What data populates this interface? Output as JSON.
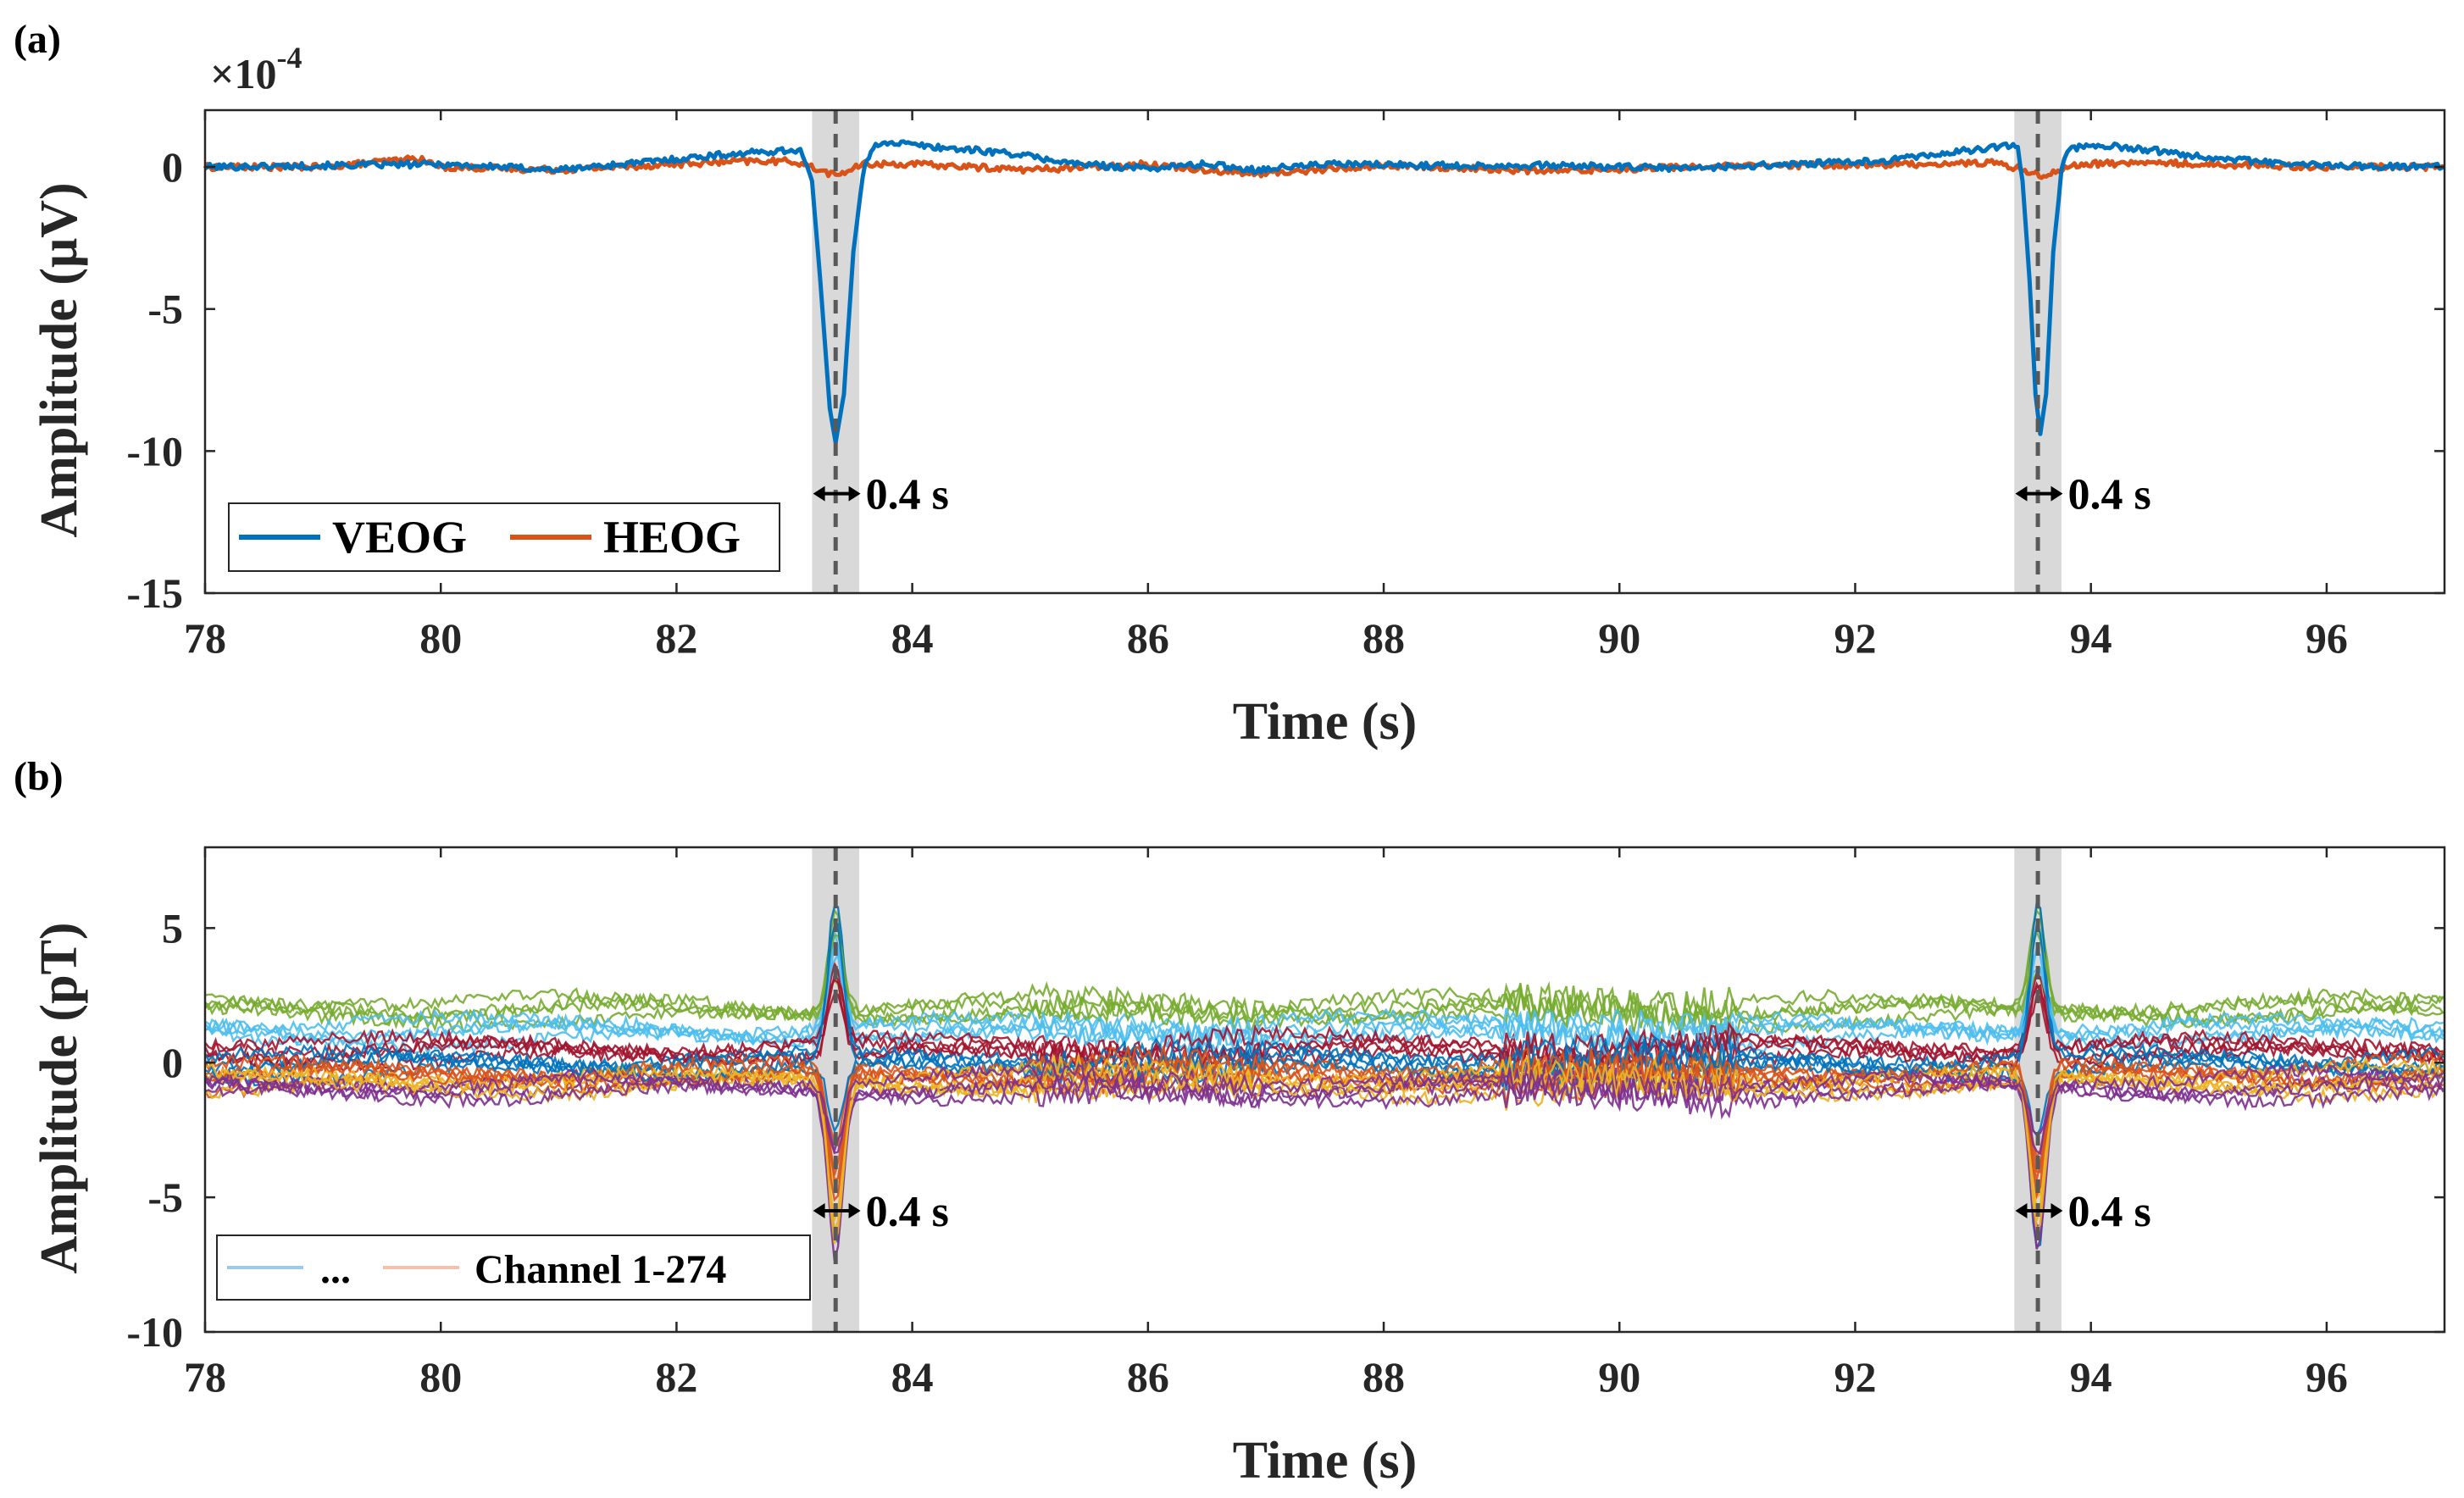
{
  "chart_data": [
    {
      "panel": "(a)",
      "type": "line",
      "title": "",
      "xlabel": "Time (s)",
      "ylabel": "Amplitude (μV)",
      "y_multiplier": "×10",
      "y_multiplier_exp": "-4",
      "xlim": [
        78,
        97
      ],
      "ylim": [
        -15,
        2
      ],
      "xticks": [
        78,
        80,
        82,
        84,
        86,
        88,
        90,
        92,
        94,
        96
      ],
      "yticks": [
        0,
        -5,
        -10,
        -15
      ],
      "ytick_labels": [
        "0",
        "-5",
        "-10",
        "-15"
      ],
      "legend": [
        "VEOG",
        "HEOG"
      ],
      "legend_position": "bottom-left",
      "series": [
        {
          "name": "VEOG",
          "color": "#0072BD",
          "points": [
            [
              78,
              0
            ],
            [
              79,
              0.05
            ],
            [
              80,
              0.1
            ],
            [
              81,
              -0.1
            ],
            [
              81.8,
              0.2
            ],
            [
              82.3,
              0.4
            ],
            [
              82.8,
              0.55
            ],
            [
              83.05,
              0.6
            ],
            [
              83.15,
              -0.5
            ],
            [
              83.22,
              -4
            ],
            [
              83.3,
              -8.5
            ],
            [
              83.35,
              -9.7
            ],
            [
              83.42,
              -8
            ],
            [
              83.5,
              -3
            ],
            [
              83.58,
              -0.3
            ],
            [
              83.65,
              0.6
            ],
            [
              83.75,
              0.9
            ],
            [
              84.2,
              0.7
            ],
            [
              84.8,
              0.5
            ],
            [
              85.4,
              0.1
            ],
            [
              86,
              -0.05
            ],
            [
              86.5,
              0.1
            ],
            [
              86.9,
              -0.1
            ],
            [
              87.5,
              0.1
            ],
            [
              88.5,
              0.05
            ],
            [
              89.5,
              0.05
            ],
            [
              90.5,
              -0.05
            ],
            [
              91.5,
              0.1
            ],
            [
              92.2,
              0.2
            ],
            [
              92.8,
              0.5
            ],
            [
              93.2,
              0.7
            ],
            [
              93.38,
              0.8
            ],
            [
              93.42,
              -0.5
            ],
            [
              93.48,
              -4
            ],
            [
              93.53,
              -8
            ],
            [
              93.57,
              -9.4
            ],
            [
              93.62,
              -8
            ],
            [
              93.68,
              -3
            ],
            [
              93.75,
              -0.2
            ],
            [
              93.8,
              0.6
            ],
            [
              94,
              0.8
            ],
            [
              94.5,
              0.6
            ],
            [
              95,
              0.35
            ],
            [
              95.5,
              0.15
            ],
            [
              96,
              0.05
            ],
            [
              97,
              0
            ]
          ]
        },
        {
          "name": "HEOG",
          "color": "#D95319",
          "points": [
            [
              78,
              0
            ],
            [
              79,
              0
            ],
            [
              79.8,
              0.3
            ],
            [
              80,
              0
            ],
            [
              81,
              -0.1
            ],
            [
              82,
              0.1
            ],
            [
              82.6,
              0.2
            ],
            [
              83,
              0.2
            ],
            [
              83.35,
              -0.3
            ],
            [
              83.6,
              0.1
            ],
            [
              84,
              0.1
            ],
            [
              85,
              -0.1
            ],
            [
              86,
              0.1
            ],
            [
              86.9,
              -0.25
            ],
            [
              88,
              0.05
            ],
            [
              89.4,
              -0.15
            ],
            [
              90.5,
              0
            ],
            [
              91.5,
              0.05
            ],
            [
              92.5,
              0.1
            ],
            [
              93.2,
              0.15
            ],
            [
              93.6,
              -0.3
            ],
            [
              93.9,
              0.1
            ],
            [
              94.5,
              0.15
            ],
            [
              95,
              0.1
            ],
            [
              96,
              0
            ],
            [
              97,
              0
            ]
          ]
        }
      ],
      "annotations": [
        {
          "text": "0.4 s",
          "x": 83.36,
          "y": -11.5
        },
        {
          "text": "0.4 s",
          "x": 93.56,
          "y": -11.5
        }
      ],
      "shaded_regions": [
        [
          83.15,
          83.55
        ],
        [
          93.35,
          93.75
        ]
      ],
      "vertical_dashed_lines": [
        83.35,
        93.55
      ]
    },
    {
      "panel": "(b)",
      "type": "line",
      "title": "",
      "xlabel": "Time (s)",
      "ylabel": "Amplitude (pT)",
      "xlim": [
        78,
        97
      ],
      "ylim": [
        -10,
        8
      ],
      "xticks": [
        78,
        80,
        82,
        84,
        86,
        88,
        90,
        92,
        94,
        96
      ],
      "yticks": [
        5,
        0,
        -5,
        -10
      ],
      "ytick_labels": [
        "5",
        "0",
        "-5",
        "-10"
      ],
      "legend": [
        "...",
        "Channel 1-274"
      ],
      "legend_position": "bottom-left",
      "series_summary": "274 overlaid MEG channels",
      "band_colors": [
        "#77AC30",
        "#4DBEEE",
        "#A2142F",
        "#0072BD",
        "#D95319",
        "#EDB120",
        "#7E2F8E"
      ],
      "band_levels": [
        2.0,
        1.2,
        0.5,
        0,
        -0.4,
        -0.7,
        -0.9
      ],
      "spike_peaks": [
        6,
        -7.5
      ],
      "annotations": [
        {
          "text": "0.4 s",
          "x": 83.36,
          "y": -5.5
        },
        {
          "text": "0.4 s",
          "x": 93.56,
          "y": -5.5
        }
      ],
      "shaded_regions": [
        [
          83.15,
          83.55
        ],
        [
          93.35,
          93.75
        ]
      ],
      "vertical_dashed_lines": [
        83.35,
        93.55
      ]
    }
  ]
}
